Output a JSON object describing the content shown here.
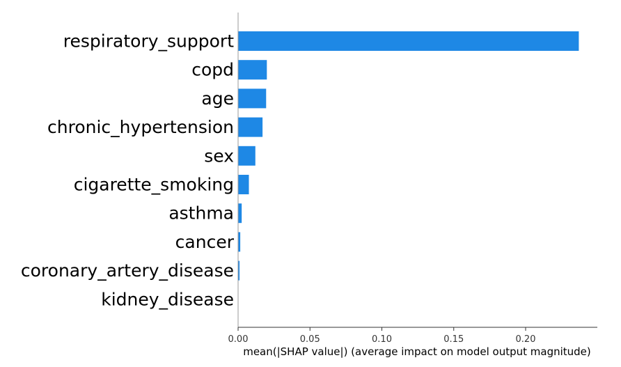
{
  "chart_data": {
    "type": "bar",
    "orientation": "horizontal",
    "title": "",
    "xlabel": "mean(|SHAP value|) (average impact on model output magnitude)",
    "ylabel": "",
    "categories": [
      "respiratory_support",
      "copd",
      "age",
      "chronic_hypertension",
      "sex",
      "cigarette_smoking",
      "asthma",
      "cancer",
      "coronary_artery_disease",
      "kidney_disease"
    ],
    "values": [
      0.237,
      0.02,
      0.0195,
      0.017,
      0.012,
      0.0075,
      0.0025,
      0.0015,
      0.001,
      0.0
    ],
    "xlim": [
      0,
      0.25
    ],
    "xticks": [
      0.0,
      0.05,
      0.1,
      0.15,
      0.2
    ],
    "xtick_labels": [
      "0.00",
      "0.05",
      "0.10",
      "0.15",
      "0.20"
    ],
    "bar_color": "#1E88E5",
    "grid": false,
    "legend": "none"
  }
}
